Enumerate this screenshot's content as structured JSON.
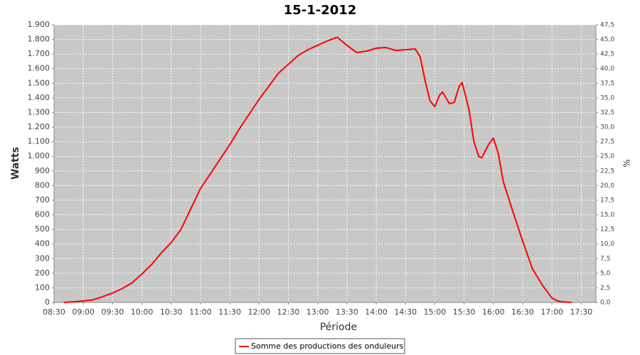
{
  "chart_data": {
    "type": "line",
    "title": "15-1-2012",
    "xlabel": "Période",
    "ylabel": "Watts",
    "y2label": "%",
    "x": [
      "08:40",
      "08:50",
      "09:00",
      "09:10",
      "09:20",
      "09:30",
      "09:40",
      "09:50",
      "10:00",
      "10:10",
      "10:20",
      "10:30",
      "10:40",
      "10:50",
      "11:00",
      "11:10",
      "11:20",
      "11:30",
      "11:40",
      "11:50",
      "12:00",
      "12:10",
      "12:20",
      "12:30",
      "12:40",
      "12:50",
      "13:00",
      "13:10",
      "13:20",
      "13:30",
      "13:40",
      "13:50",
      "14:00",
      "14:10",
      "14:20",
      "14:30",
      "14:40",
      "14:45",
      "14:50",
      "14:55",
      "15:00",
      "15:05",
      "15:08",
      "15:15",
      "15:20",
      "15:25",
      "15:28",
      "15:35",
      "15:40",
      "15:45",
      "15:48",
      "15:55",
      "16:00",
      "16:05",
      "16:10",
      "16:20",
      "16:30",
      "16:40",
      "16:50",
      "17:00",
      "17:05",
      "17:10",
      "17:20"
    ],
    "series": [
      {
        "name": "Somme des productions des onduleurs",
        "color": "#ff0000",
        "values": [
          0,
          5,
          10,
          18,
          40,
          65,
          95,
          135,
          195,
          260,
          340,
          410,
          500,
          640,
          780,
          880,
          980,
          1080,
          1190,
          1290,
          1390,
          1480,
          1570,
          1630,
          1690,
          1730,
          1760,
          1790,
          1815,
          1760,
          1710,
          1720,
          1740,
          1745,
          1725,
          1730,
          1735,
          1680,
          1520,
          1380,
          1340,
          1420,
          1440,
          1360,
          1370,
          1480,
          1505,
          1320,
          1100,
          1000,
          990,
          1080,
          1125,
          1020,
          830,
          620,
          420,
          230,
          120,
          30,
          12,
          5,
          0
        ]
      }
    ],
    "xlim": [
      "08:30",
      "17:45"
    ],
    "xticks": [
      "08:30",
      "09:00",
      "09:30",
      "10:00",
      "10:30",
      "11:00",
      "11:30",
      "12:00",
      "12:30",
      "13:00",
      "13:30",
      "14:00",
      "14:30",
      "15:00",
      "15:30",
      "16:00",
      "16:30",
      "17:00",
      "17:30"
    ],
    "ylim": [
      0,
      1900
    ],
    "yticks": [
      0,
      100,
      200,
      300,
      400,
      500,
      600,
      700,
      800,
      900,
      {
        "value": 1000,
        "label": "1.000"
      },
      {
        "value": 1100,
        "label": "1.100"
      },
      {
        "value": 1200,
        "label": "1.200"
      },
      {
        "value": 1300,
        "label": "1.300"
      },
      {
        "value": 1400,
        "label": "1.400"
      },
      {
        "value": 1500,
        "label": "1.500"
      },
      {
        "value": 1600,
        "label": "1.600"
      },
      {
        "value": 1700,
        "label": "1.700"
      },
      {
        "value": 1800,
        "label": "1.800"
      },
      {
        "value": 1900,
        "label": "1.900"
      }
    ],
    "y2lim": [
      0,
      47.5
    ],
    "y2ticks": [
      {
        "value": 0,
        "label": "0,0"
      },
      {
        "value": 2.5,
        "label": "2,5"
      },
      {
        "value": 5,
        "label": "5,0"
      },
      {
        "value": 7.5,
        "label": "7,5"
      },
      {
        "value": 10,
        "label": "10,0"
      },
      {
        "value": 12.5,
        "label": "12,5"
      },
      {
        "value": 15,
        "label": "15,0"
      },
      {
        "value": 17.5,
        "label": "17,5"
      },
      {
        "value": 20,
        "label": "20,0"
      },
      {
        "value": 22.5,
        "label": "22,5"
      },
      {
        "value": 25,
        "label": "25,0"
      },
      {
        "value": 27.5,
        "label": "27,5"
      },
      {
        "value": 30,
        "label": "30,0"
      },
      {
        "value": 32.5,
        "label": "32,5"
      },
      {
        "value": 35,
        "label": "35,0"
      },
      {
        "value": 37.5,
        "label": "37,5"
      },
      {
        "value": 40,
        "label": "40,0"
      },
      {
        "value": 42.5,
        "label": "42,5"
      },
      {
        "value": 45,
        "label": "45,0"
      },
      {
        "value": 47.5,
        "label": "47,5"
      }
    ],
    "grid": true
  }
}
